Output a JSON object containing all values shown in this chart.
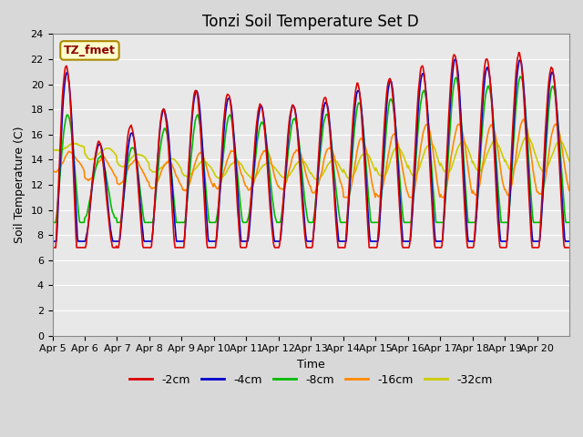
{
  "title": "Tonzi Soil Temperature Set D",
  "xlabel": "Time",
  "ylabel": "Soil Temperature (C)",
  "ylim": [
    0,
    24
  ],
  "yticks": [
    0,
    2,
    4,
    6,
    8,
    10,
    12,
    14,
    16,
    18,
    20,
    22,
    24
  ],
  "xtick_labels": [
    "Apr 5",
    "Apr 6",
    "Apr 7",
    "Apr 8",
    "Apr 9",
    "Apr 10",
    "Apr 11",
    "Apr 12",
    "Apr 13",
    "Apr 14",
    "Apr 15",
    "Apr 16",
    "Apr 17",
    "Apr 18",
    "Apr 19",
    "Apr 20"
  ],
  "legend_label": "TZ_fmet",
  "series_labels": [
    "-2cm",
    "-4cm",
    "-8cm",
    "-16cm",
    "-32cm"
  ],
  "series_colors": [
    "#dd0000",
    "#0000cc",
    "#00bb00",
    "#ff8800",
    "#cccc00"
  ],
  "plot_bg_color": "#e8e8e8",
  "fig_bg_color": "#d8d8d8",
  "title_fontsize": 12,
  "axis_fontsize": 9,
  "tick_fontsize": 8,
  "legend_fontsize": 9,
  "linewidth": 1.2,
  "n_days": 16,
  "pts_per_day": 48
}
